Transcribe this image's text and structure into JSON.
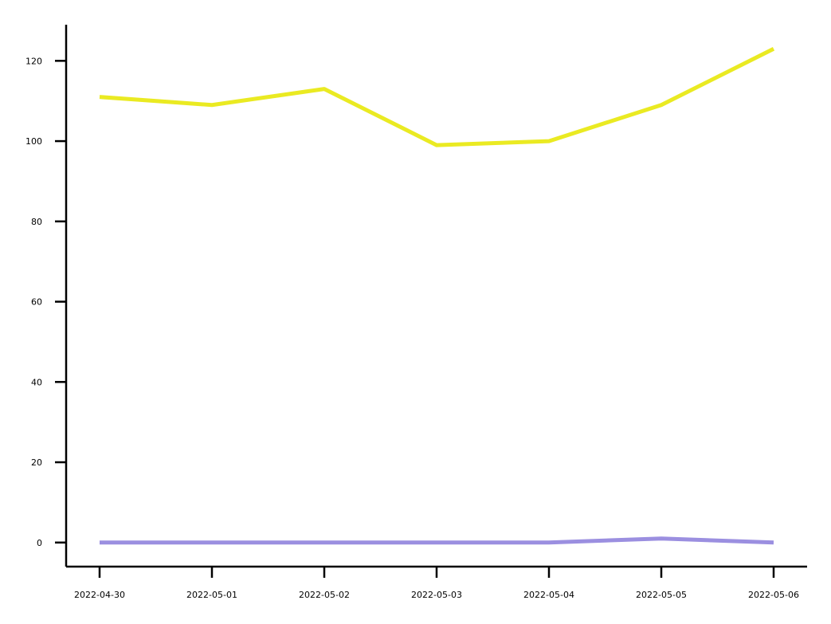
{
  "chart_data": {
    "type": "line",
    "x": [
      "2022-04-30",
      "2022-05-01",
      "2022-05-02",
      "2022-05-03",
      "2022-05-04",
      "2022-05-05",
      "2022-05-06"
    ],
    "series": [
      {
        "values": [
          111,
          109,
          113,
          99,
          100,
          109,
          123
        ],
        "color": "#eaea22"
      },
      {
        "values": [
          0,
          0,
          0,
          0,
          0,
          1,
          0
        ],
        "color": "#9b8fe0"
      }
    ],
    "ylim": [
      -6,
      129
    ],
    "yticks": [
      0,
      20,
      40,
      60,
      80,
      100,
      120
    ],
    "xlabel": "",
    "ylabel": "",
    "title": "",
    "grid": false
  }
}
